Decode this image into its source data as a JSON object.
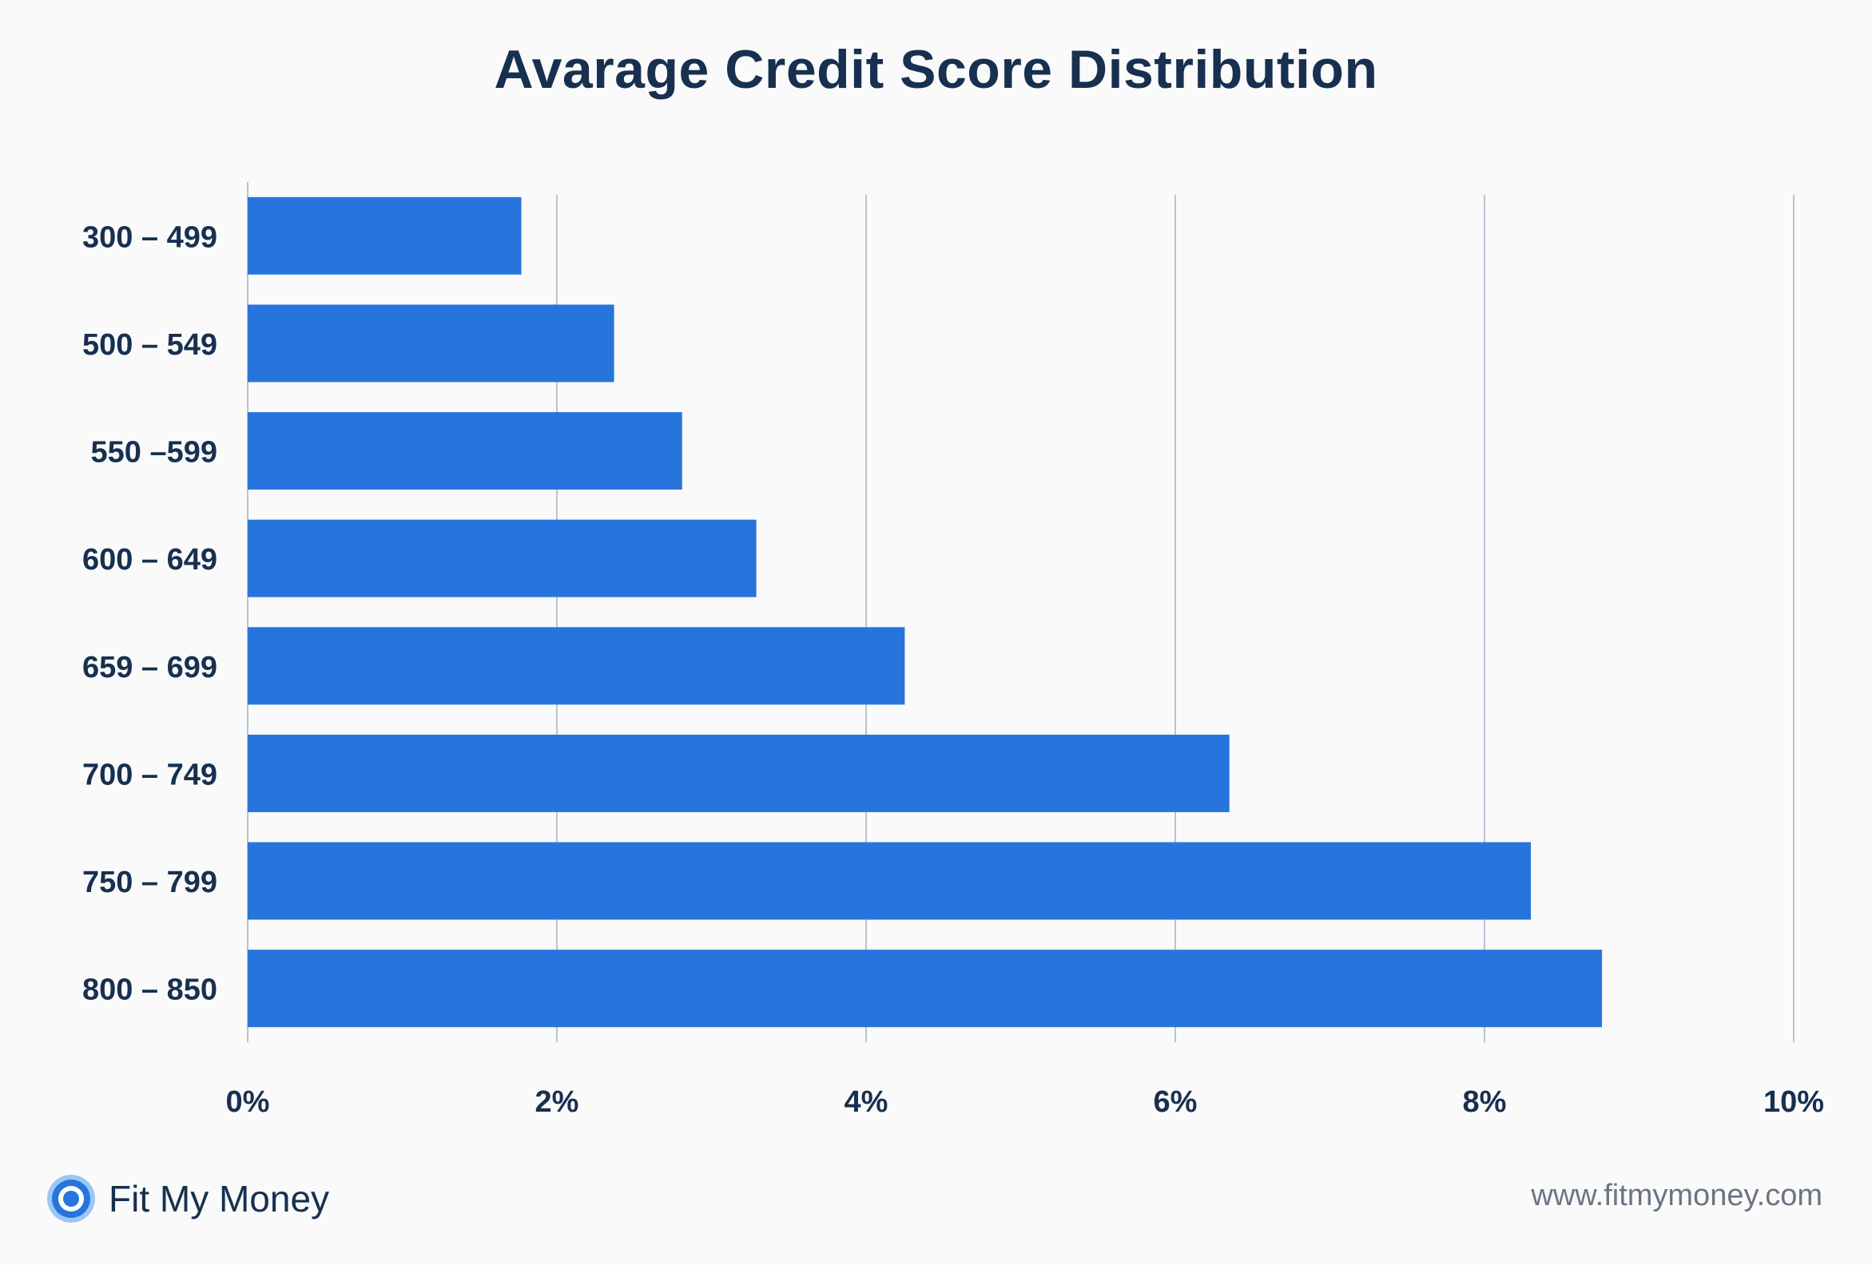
{
  "brand": {
    "name": "Fit My Money",
    "logo_icon": "ring-logo-icon",
    "accent": "#2775dc"
  },
  "footer": {
    "website": "www.fitmymoney.com"
  },
  "chart_data": {
    "type": "bar",
    "orientation": "horizontal",
    "title": "Avarage Credit Score Distribution",
    "xlabel": "",
    "ylabel": "",
    "categories": [
      "300 – 499",
      "500 – 549",
      "550 –599",
      "600 – 649",
      "659 – 699",
      "700 – 749",
      "750 – 799",
      "800 – 850"
    ],
    "values": [
      1.77,
      2.37,
      2.81,
      3.29,
      4.25,
      6.35,
      8.3,
      8.76
    ],
    "xlim": [
      0,
      10
    ],
    "x_ticks": [
      0,
      2,
      4,
      6,
      8,
      10
    ],
    "x_tick_labels": [
      "0%",
      "2%",
      "4%",
      "6%",
      "8%",
      "10%"
    ],
    "grid": "vertical",
    "legend": "none",
    "bar_color": "#2775dc",
    "grid_color": "#b7c4d3",
    "label_color": "#17304f"
  }
}
